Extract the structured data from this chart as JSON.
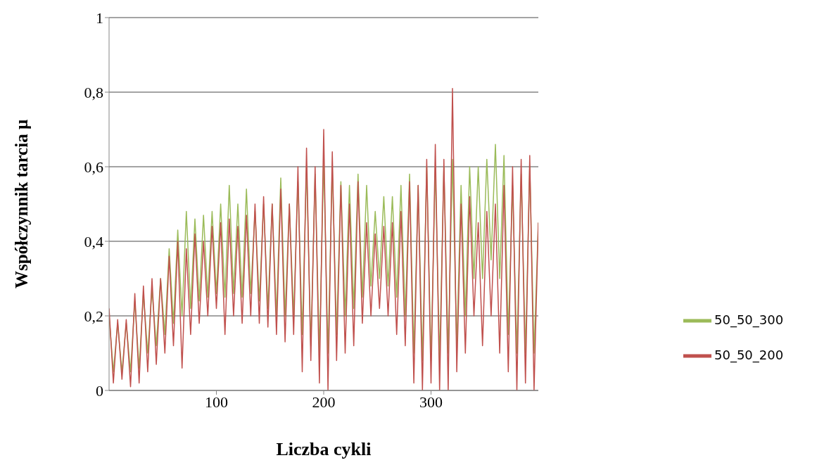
{
  "chart_data": {
    "type": "line",
    "xlabel": "Liczba cykli",
    "ylabel": "Współczynnik tarcia μ",
    "x": [
      0,
      4,
      8,
      12,
      16,
      20,
      24,
      28,
      32,
      36,
      40,
      44,
      48,
      52,
      56,
      60,
      64,
      68,
      72,
      76,
      80,
      84,
      88,
      92,
      96,
      100,
      104,
      108,
      112,
      116,
      120,
      124,
      128,
      132,
      136,
      140,
      144,
      148,
      152,
      156,
      160,
      164,
      168,
      172,
      176,
      180,
      184,
      188,
      192,
      196,
      200,
      204,
      208,
      212,
      216,
      220,
      224,
      228,
      232,
      236,
      240,
      244,
      248,
      252,
      256,
      260,
      264,
      268,
      272,
      276,
      280,
      284,
      288,
      292,
      296,
      300,
      304,
      308,
      312,
      316,
      320,
      324,
      328,
      332,
      336,
      340,
      344,
      348,
      352,
      356,
      360,
      364,
      368,
      372,
      376,
      380,
      384,
      388,
      392,
      396,
      400
    ],
    "series": [
      {
        "name": "50_50_300",
        "color": "#9bbb59",
        "values": [
          0.2,
          0.05,
          0.18,
          0.05,
          0.18,
          0.05,
          0.24,
          0.06,
          0.26,
          0.1,
          0.27,
          0.12,
          0.3,
          0.15,
          0.38,
          0.18,
          0.43,
          0.2,
          0.48,
          0.22,
          0.46,
          0.24,
          0.47,
          0.25,
          0.48,
          0.26,
          0.5,
          0.25,
          0.55,
          0.26,
          0.5,
          0.25,
          0.54,
          0.26,
          0.48,
          0.24,
          0.5,
          0.22,
          0.5,
          0.2,
          0.57,
          0.2,
          0.5,
          0.2,
          0.56,
          0.15,
          0.6,
          0.12,
          0.58,
          0.1,
          0.62,
          0.1,
          0.6,
          0.15,
          0.56,
          0.2,
          0.55,
          0.22,
          0.58,
          0.25,
          0.55,
          0.28,
          0.48,
          0.3,
          0.52,
          0.28,
          0.52,
          0.25,
          0.55,
          0.2,
          0.58,
          0.1,
          0.55,
          0.08,
          0.6,
          0.08,
          0.6,
          0.08,
          0.6,
          0.1,
          0.62,
          0.12,
          0.55,
          0.2,
          0.6,
          0.3,
          0.6,
          0.3,
          0.62,
          0.35,
          0.66,
          0.3,
          0.63,
          0.15,
          0.55,
          0.1,
          0.58,
          0.1,
          0.6,
          0.1,
          0.45
        ]
      },
      {
        "name": "50_50_200",
        "color": "#c0504d",
        "values": [
          0.22,
          0.02,
          0.19,
          0.03,
          0.19,
          0.01,
          0.26,
          0.02,
          0.28,
          0.05,
          0.3,
          0.07,
          0.3,
          0.1,
          0.36,
          0.12,
          0.4,
          0.06,
          0.38,
          0.15,
          0.42,
          0.18,
          0.4,
          0.2,
          0.44,
          0.22,
          0.45,
          0.15,
          0.46,
          0.2,
          0.44,
          0.18,
          0.47,
          0.2,
          0.5,
          0.18,
          0.52,
          0.17,
          0.5,
          0.15,
          0.54,
          0.13,
          0.5,
          0.15,
          0.6,
          0.05,
          0.65,
          0.08,
          0.6,
          0.02,
          0.7,
          0.0,
          0.64,
          0.08,
          0.55,
          0.1,
          0.5,
          0.12,
          0.56,
          0.18,
          0.45,
          0.2,
          0.42,
          0.22,
          0.44,
          0.2,
          0.45,
          0.15,
          0.48,
          0.12,
          0.56,
          0.02,
          0.55,
          0.0,
          0.62,
          0.02,
          0.66,
          0.0,
          0.62,
          0.0,
          0.81,
          0.05,
          0.5,
          0.1,
          0.52,
          0.2,
          0.45,
          0.12,
          0.48,
          0.2,
          0.5,
          0.1,
          0.55,
          0.05,
          0.6,
          0.0,
          0.62,
          0.02,
          0.63,
          0.0,
          0.45
        ]
      }
    ],
    "xlim": [
      0,
      400
    ],
    "xticks": [
      100,
      200,
      300
    ],
    "ylim": [
      0,
      1
    ],
    "yticks": [
      0,
      {
        "value": 0.2,
        "label": "0,2"
      },
      {
        "value": 0.4,
        "label": "0,4"
      },
      {
        "value": 0.6,
        "label": "0,6"
      },
      {
        "value": 0.8,
        "label": "0,8"
      },
      1
    ],
    "grid": "y",
    "legend": "right",
    "marker": "none",
    "line_style": "solid"
  }
}
